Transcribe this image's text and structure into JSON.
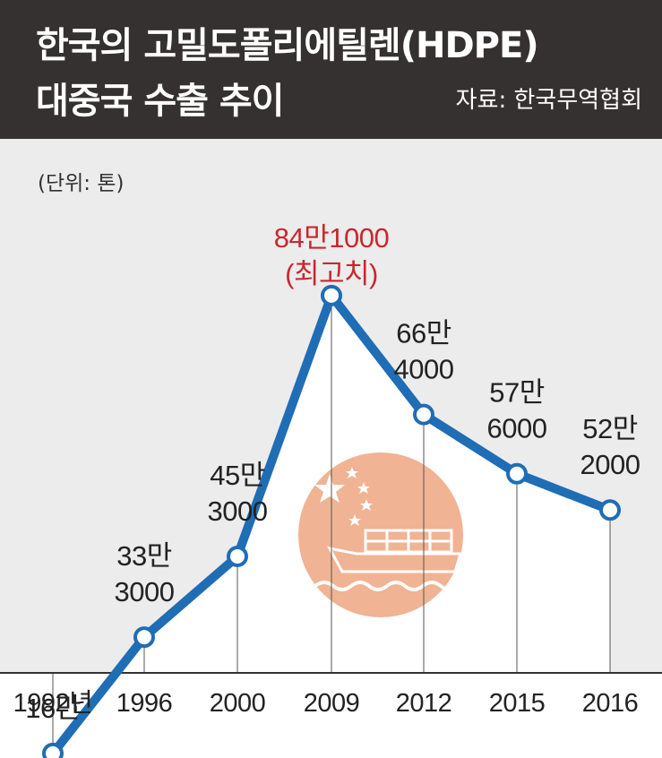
{
  "header": {
    "title_line1": "한국의 고밀도폴리에틸렌(HDPE)",
    "title_line2": "대중국 수출 추이",
    "source": "자료: 한국무역협회"
  },
  "unit_label": "(단위: 톤)",
  "colors": {
    "header_bg": "#353130",
    "line": "#1f6db5",
    "area": "#ececec",
    "highlight": "#c8282e",
    "emblem": "#f0b393"
  },
  "icons": [
    "china-flag-stars-icon",
    "cargo-ship-icon",
    "waves-icon"
  ],
  "chart_data": {
    "type": "line",
    "categories": [
      "1992",
      "1996",
      "2000",
      "2009",
      "2012",
      "2015",
      "2016"
    ],
    "tick_labels": [
      "1992년",
      "1996",
      "2000",
      "2009",
      "2012",
      "2015",
      "2016"
    ],
    "values": [
      160000,
      333000,
      453000,
      841000,
      664000,
      576000,
      522000
    ],
    "value_labels": [
      [
        "16만"
      ],
      [
        "33만",
        "3000"
      ],
      [
        "45만",
        "3000"
      ],
      [
        "84만1000",
        "(최고치)"
      ],
      [
        "66만",
        "4000"
      ],
      [
        "57만",
        "6000"
      ],
      [
        "52만",
        "2000"
      ]
    ],
    "highlight_index": 3,
    "ylabel": "톤",
    "grid": false,
    "legend": "none"
  }
}
